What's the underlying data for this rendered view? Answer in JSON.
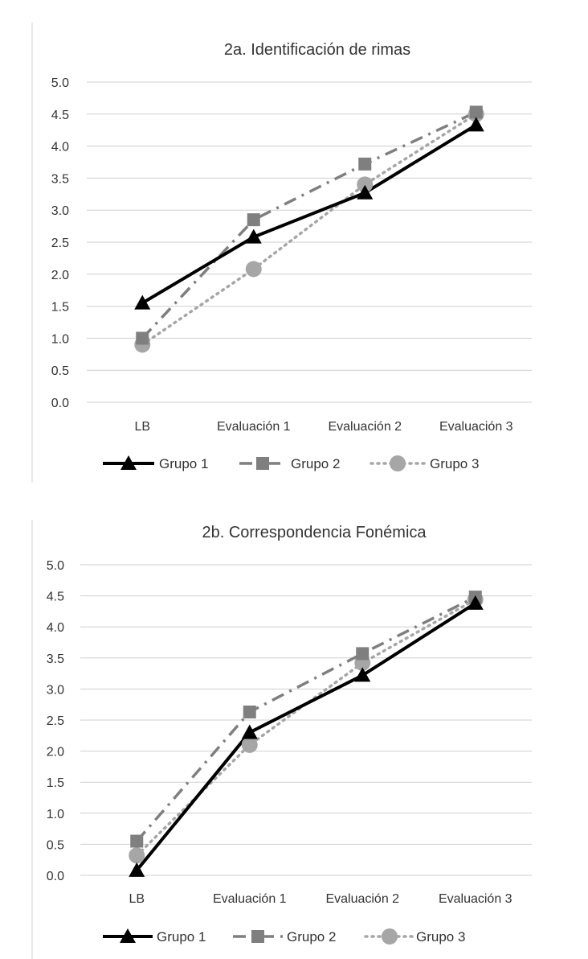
{
  "colors": {
    "grupo1": "#000000",
    "grupo2": "#7f7f7f",
    "grupo3": "#a6a6a6",
    "grid": "#cfcfcf",
    "text": "#333333"
  },
  "chart_data": [
    {
      "type": "line",
      "title": "2a. Identificación de rimas",
      "categories": [
        "LB",
        "Evaluación 1",
        "Evaluación 2",
        "Evaluación 3"
      ],
      "ylim": [
        0,
        5
      ],
      "yticks": [
        "0.0",
        "0.5",
        "1.0",
        "1.5",
        "2.0",
        "2.5",
        "3.0",
        "3.5",
        "4.0",
        "4.5",
        "5.0"
      ],
      "grid": true,
      "legend": "bottom",
      "series": [
        {
          "name": "Grupo 1",
          "marker": "triangle",
          "line": "solid",
          "values": [
            1.55,
            2.58,
            3.27,
            4.33
          ]
        },
        {
          "name": "Grupo 2",
          "marker": "square",
          "line": "dash-dot",
          "values": [
            1.0,
            2.85,
            3.72,
            4.53
          ]
        },
        {
          "name": "Grupo 3",
          "marker": "circle",
          "line": "dotted",
          "values": [
            0.9,
            2.08,
            3.4,
            4.5
          ]
        }
      ]
    },
    {
      "type": "line",
      "title": "2b. Correspondencia Fonémica",
      "categories": [
        "LB",
        "Evaluación 1",
        "Evaluación 2",
        "Evaluación 3"
      ],
      "ylim": [
        0,
        5
      ],
      "yticks": [
        "0.0",
        "0.5",
        "1.0",
        "1.5",
        "2.0",
        "2.5",
        "3.0",
        "3.5",
        "4.0",
        "4.5",
        "5.0"
      ],
      "grid": true,
      "legend": "bottom",
      "series": [
        {
          "name": "Grupo 1",
          "marker": "triangle",
          "line": "solid",
          "values": [
            0.08,
            2.3,
            3.22,
            4.38
          ]
        },
        {
          "name": "Grupo 2",
          "marker": "square",
          "line": "dash-dot",
          "values": [
            0.55,
            2.63,
            3.57,
            4.48
          ]
        },
        {
          "name": "Grupo 3",
          "marker": "circle",
          "line": "dotted",
          "values": [
            0.32,
            2.1,
            3.42,
            4.44
          ]
        }
      ]
    }
  ]
}
